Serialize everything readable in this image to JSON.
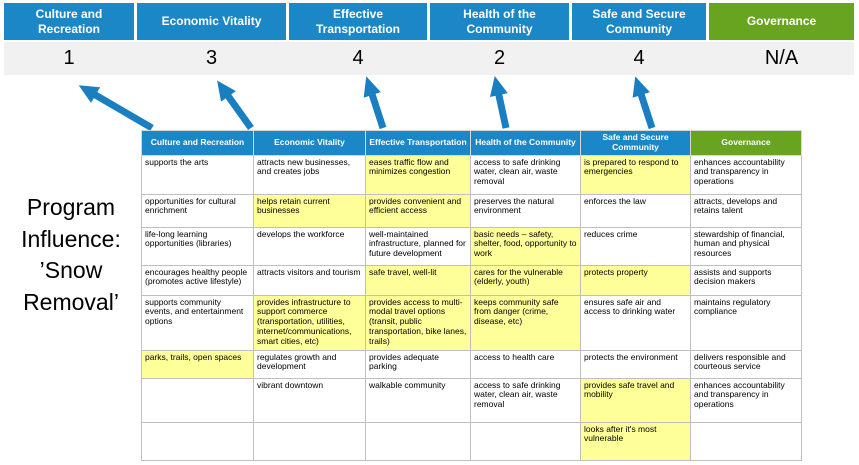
{
  "title": "Program Influence: ’Snow Removal’",
  "colors": {
    "blue": "#1b87c6",
    "green": "#68a41f",
    "hl": "#ffff99",
    "arrow": "#1a7fc0"
  },
  "banner": [
    {
      "label": "Culture and Recreation",
      "score": "1",
      "type": "blue"
    },
    {
      "label": "Economic Vitality",
      "score": "3",
      "type": "blue"
    },
    {
      "label": "Effective Transportation",
      "score": "4",
      "type": "blue"
    },
    {
      "label": "Health of the Community",
      "score": "2",
      "type": "blue"
    },
    {
      "label": "Safe and Secure Community",
      "score": "4",
      "type": "blue"
    },
    {
      "label": "Governance",
      "score": "N/A",
      "type": "green"
    }
  ],
  "matrix": {
    "headers": [
      {
        "label": "Culture and Recreation",
        "type": "blue"
      },
      {
        "label": "Economic Vitality",
        "type": "blue"
      },
      {
        "label": "Effective Transportation",
        "type": "blue"
      },
      {
        "label": "Health of the Community",
        "type": "blue"
      },
      {
        "label": "Safe and Secure Community",
        "type": "blue"
      },
      {
        "label": "Governance",
        "type": "green"
      }
    ],
    "rows": [
      [
        {
          "text": "supports the arts",
          "highlight": false
        },
        {
          "text": "attracts new businesses, and creates jobs",
          "highlight": false
        },
        {
          "text": "eases traffic flow and minimizes congestion",
          "highlight": true
        },
        {
          "text": "access to safe drinking water, clean air, waste removal",
          "highlight": false
        },
        {
          "text": "is prepared to respond to emergencies",
          "highlight": true
        },
        {
          "text": "enhances accountability and transparency in operations",
          "highlight": false
        }
      ],
      [
        {
          "text": "opportunities for cultural enrichment",
          "highlight": false
        },
        {
          "text": "helps retain current businesses",
          "highlight": true
        },
        {
          "text": "provides convenient and efficient access",
          "highlight": true
        },
        {
          "text": "preserves the natural environment",
          "highlight": false
        },
        {
          "text": "enforces the law",
          "highlight": false
        },
        {
          "text": "attracts, develops and retains talent",
          "highlight": false
        }
      ],
      [
        {
          "text": "life-long learning opportunities (libraries)",
          "highlight": false
        },
        {
          "text": "develops the workforce",
          "highlight": false
        },
        {
          "text": "well-maintained infrastructure, planned for future development",
          "highlight": false
        },
        {
          "text": "basic needs – safety, shelter, food, opportunity to work",
          "highlight": true
        },
        {
          "text": "reduces crime",
          "highlight": false
        },
        {
          "text": "stewardship of financial, human and physical resources",
          "highlight": false
        }
      ],
      [
        {
          "text": "encourages healthy people (promotes active lifestyle)",
          "highlight": false
        },
        {
          "text": "attracts visitors and tourism",
          "highlight": false
        },
        {
          "text": "safe travel, well-lit",
          "highlight": true
        },
        {
          "text": "cares for the vulnerable (elderly, youth)",
          "highlight": true
        },
        {
          "text": "protects property",
          "highlight": true
        },
        {
          "text": "assists and supports decision makers",
          "highlight": false
        }
      ],
      [
        {
          "text": "supports community events, and entertainment options",
          "highlight": false
        },
        {
          "text": "provides infrastructure to support commerce (transportation, utilities, internet/communications, smart cities, etc)",
          "highlight": true
        },
        {
          "text": "provides access to multi-modal travel options (transit, public transportation, bike lanes, trails)",
          "highlight": true
        },
        {
          "text": "keeps community safe from danger (crime, disease, etc)",
          "highlight": true
        },
        {
          "text": "ensures safe air and access to drinking water",
          "highlight": false
        },
        {
          "text": "maintains regulatory compliance",
          "highlight": false
        }
      ],
      [
        {
          "text": "parks, trails, open spaces",
          "highlight": true
        },
        {
          "text": "regulates growth and development",
          "highlight": false
        },
        {
          "text": "provides adequate parking",
          "highlight": false
        },
        {
          "text": "access to health care",
          "highlight": false
        },
        {
          "text": "protects the environment",
          "highlight": false
        },
        {
          "text": "delivers responsible and courteous service",
          "highlight": false
        }
      ],
      [
        {
          "text": "",
          "highlight": false
        },
        {
          "text": "vibrant downtown",
          "highlight": false
        },
        {
          "text": "walkable community",
          "highlight": false
        },
        {
          "text": "access to safe drinking water, clean air, waste removal",
          "highlight": false
        },
        {
          "text": "provides safe travel and mobility",
          "highlight": true
        },
        {
          "text": "enhances accountability and transparency in operations",
          "highlight": false
        }
      ],
      [
        {
          "text": "",
          "highlight": false
        },
        {
          "text": "",
          "highlight": false
        },
        {
          "text": "",
          "highlight": false
        },
        {
          "text": "",
          "highlight": false
        },
        {
          "text": "looks after it's most vulnerable",
          "highlight": true
        },
        {
          "text": "",
          "highlight": false
        }
      ]
    ]
  }
}
